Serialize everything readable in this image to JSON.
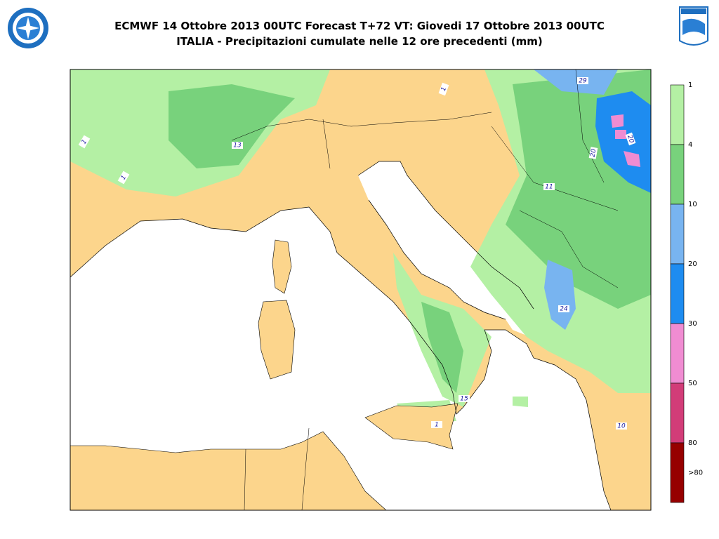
{
  "header": {
    "title_line1": "ECMWF 14 Ottobre 2013 00UTC Forecast T+72 VT: Giovedi 17 Ottobre 2013 00UTC",
    "title_line2": "ITALIA - Precipitazioni cumulate nelle 12 ore precedenti (mm)"
  },
  "legend": {
    "labels": [
      "1",
      "4",
      "10",
      "20",
      "30",
      "50",
      "80",
      ">80"
    ],
    "colors": [
      "#b4f0a4",
      "#78d27c",
      "#78b4f0",
      "#1e8cf0",
      "#f08cd2",
      "#d23c78",
      "#960000"
    ]
  },
  "map": {
    "labels": [
      "29",
      "13",
      "11",
      "24",
      "15",
      "10",
      "20",
      "20",
      "1",
      "1",
      "1",
      "1"
    ]
  }
}
